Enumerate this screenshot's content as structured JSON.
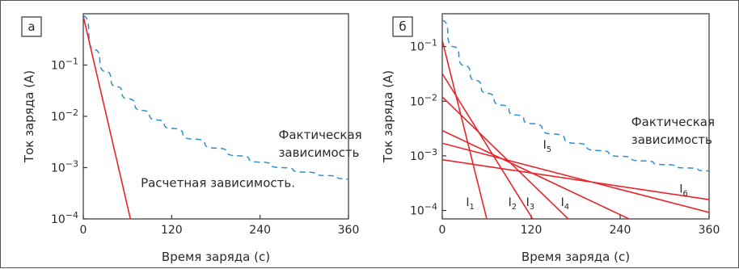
{
  "chart_data": [
    {
      "type": "line",
      "panel_label": "а",
      "xlabel": "Время заряда (с)",
      "ylabel": "Ток заряда (А)",
      "xlim": [
        0,
        360
      ],
      "ylim": [
        0.0001,
        1
      ],
      "yscale": "log",
      "xticks": [
        0,
        120,
        240,
        360
      ],
      "xtick_labels": [
        "0",
        "120",
        "240",
        "360"
      ],
      "yticks": [
        0.0001,
        0.001,
        0.01,
        0.1
      ],
      "ytick_labels": [
        [
          "10",
          "−4"
        ],
        [
          "10",
          "−3"
        ],
        [
          "10",
          "−2"
        ],
        [
          "10",
          "−1"
        ]
      ],
      "grid": false,
      "series": [
        {
          "name": "Фактическая зависимость",
          "style": "dashed",
          "color": "#2b8fd0",
          "x": [
            0,
            15,
            30,
            45,
            60,
            80,
            100,
            120,
            150,
            180,
            210,
            240,
            270,
            300,
            330,
            360
          ],
          "y": [
            0.9,
            0.2,
            0.075,
            0.038,
            0.022,
            0.013,
            0.0085,
            0.0058,
            0.0036,
            0.0024,
            0.0017,
            0.00128,
            0.001,
            0.00082,
            0.0007,
            0.0006
          ]
        },
        {
          "name": "Расчетная зависимость.",
          "style": "solid",
          "color": "#e8252b",
          "x": [
            0,
            64
          ],
          "y": [
            0.9,
            0.0001
          ]
        }
      ],
      "annotations": [
        {
          "lines": [
            "Фактическая",
            "зависимость"
          ],
          "x": 265,
          "y": 0.0036
        },
        {
          "lines": [
            "Расчетная зависимость."
          ],
          "x": 78,
          "y": 0.00042
        }
      ]
    },
    {
      "type": "line",
      "panel_label": "б",
      "xlabel": "Время заряда (с)",
      "ylabel": "Ток заряда (А)",
      "xlim": [
        0,
        360
      ],
      "ylim": [
        7e-05,
        0.4
      ],
      "yscale": "log",
      "xticks": [
        0,
        120,
        240,
        360
      ],
      "xtick_labels": [
        "0",
        "120",
        "240",
        "360"
      ],
      "yticks": [
        0.0001,
        0.001,
        0.01,
        0.1
      ],
      "ytick_labels": [
        [
          "10",
          "−4"
        ],
        [
          "10",
          "−3"
        ],
        [
          "10",
          "−2"
        ],
        [
          "10",
          "−1"
        ]
      ],
      "grid": false,
      "series": [
        {
          "name": "Фактическая зависимость",
          "style": "dashed",
          "color": "#2b8fd0",
          "x": [
            0,
            15,
            30,
            45,
            60,
            80,
            100,
            120,
            150,
            180,
            210,
            240,
            270,
            300,
            330,
            360
          ],
          "y": [
            0.3,
            0.1,
            0.045,
            0.024,
            0.014,
            0.0085,
            0.0056,
            0.0039,
            0.0025,
            0.0017,
            0.00125,
            0.00098,
            0.00081,
            0.00069,
            0.0006,
            0.00053
          ]
        },
        {
          "name": "I1",
          "style": "solid",
          "color": "#e8252b",
          "x": [
            0,
            60
          ],
          "y": [
            0.13,
            7e-05
          ]
        },
        {
          "name": "I2",
          "style": "solid",
          "color": "#e8252b",
          "x": [
            0,
            122
          ],
          "y": [
            0.032,
            7e-05
          ]
        },
        {
          "name": "I3",
          "style": "solid",
          "color": "#e8252b",
          "x": [
            0,
            170
          ],
          "y": [
            0.012,
            7e-05
          ]
        },
        {
          "name": "I4",
          "style": "solid",
          "color": "#e8252b",
          "x": [
            0,
            252
          ],
          "y": [
            0.0029,
            7e-05
          ]
        },
        {
          "name": "I5",
          "style": "solid",
          "color": "#e8252b",
          "x": [
            0,
            360
          ],
          "y": [
            0.0017,
            9.2e-05
          ]
        },
        {
          "name": "I6",
          "style": "solid",
          "color": "#e8252b",
          "x": [
            0,
            360
          ],
          "y": [
            0.00085,
            0.000158
          ]
        }
      ],
      "curve_labels": [
        {
          "text": "I",
          "sub": "1",
          "x": 32,
          "y": 0.00012
        },
        {
          "text": "I",
          "sub": "2",
          "x": 89,
          "y": 0.00012
        },
        {
          "text": "I",
          "sub": "3",
          "x": 113,
          "y": 0.00012
        },
        {
          "text": "I",
          "sub": "4",
          "x": 160,
          "y": 0.00012
        },
        {
          "text": "I",
          "sub": "5",
          "x": 136,
          "y": 0.00135
        },
        {
          "text": "I",
          "sub": "6",
          "x": 320,
          "y": 0.00021
        }
      ],
      "annotations": [
        {
          "lines": [
            "Фактическая",
            "зависимость"
          ],
          "x": 255,
          "y": 0.0035
        }
      ]
    }
  ]
}
